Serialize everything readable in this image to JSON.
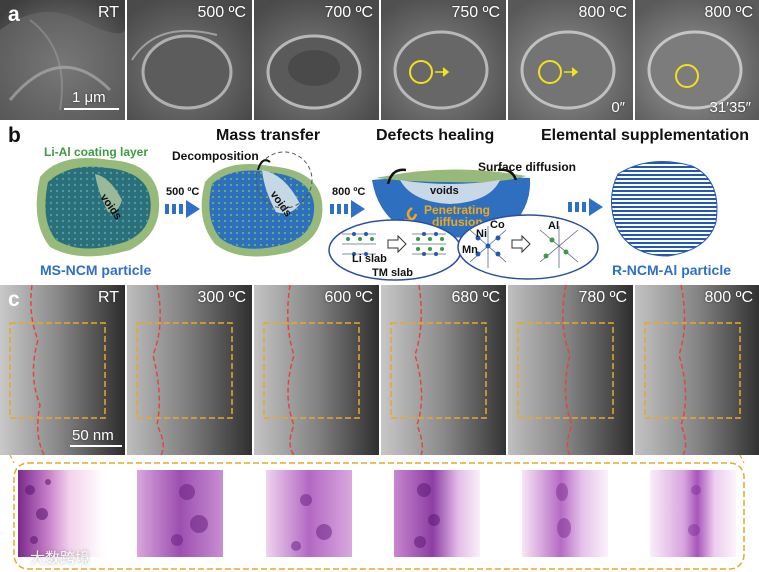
{
  "panel_a": {
    "letter": "a",
    "frames": [
      {
        "label": "RT"
      },
      {
        "label": "500 ºC"
      },
      {
        "label": "700 ºC"
      },
      {
        "label": "750 ºC"
      },
      {
        "label": "800 ºC",
        "time": "0″"
      },
      {
        "label": "800 ºC",
        "time": "31′35″"
      }
    ],
    "scale_bar": "1 μm",
    "marker_color": "#f2e21a"
  },
  "panel_b": {
    "letter": "b",
    "coating_label": "Li-Al coating layer",
    "voids": "voids",
    "stage_titles": [
      "Mass transfer",
      "Defects healing",
      "Elemental supplementation"
    ],
    "decomposition": "Decomposition",
    "temp1": "500 ºC",
    "temp2": "800 ºC",
    "surface_diffusion": "Surface diffusion",
    "penetrating_diffusion": "Penetrating diffusion",
    "li_slab": "Li slab",
    "tm_slab": "TM slab",
    "ni": "Ni",
    "co": "Co",
    "mn": "Mn",
    "al": "Al",
    "start_particle": "MS-NCM particle",
    "end_particle": "R-NCM-Al particle",
    "colors": {
      "green": "#3d9a42",
      "blue": "#2358b8",
      "orange": "#f0a817",
      "coating": "#97b97a"
    }
  },
  "panel_c": {
    "letter": "c",
    "frames": [
      {
        "label": "RT"
      },
      {
        "label": "300 ºC"
      },
      {
        "label": "600 ºC"
      },
      {
        "label": "680 ºC"
      },
      {
        "label": "780 ºC"
      },
      {
        "label": "800 ºC"
      }
    ],
    "scale_bar": "50 nm",
    "box_color": "#e5a928",
    "boundary_color": "#e0463c",
    "fft_color": "#8a2f9a"
  },
  "watermark": "大数跨境"
}
